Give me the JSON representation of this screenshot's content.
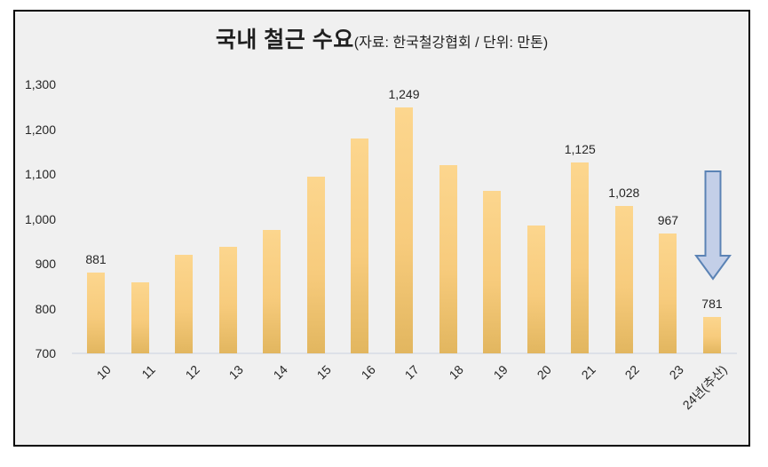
{
  "chart_data": {
    "type": "bar",
    "title": "국내 철근 수요",
    "subtitle": "(자료: 한국철강협회 / 단위: 만톤)",
    "categories": [
      "10",
      "11",
      "12",
      "13",
      "14",
      "15",
      "16",
      "17",
      "18",
      "19",
      "20",
      "21",
      "22",
      "23",
      "24년(추산)"
    ],
    "values": [
      881,
      858,
      920,
      938,
      975,
      1095,
      1180,
      1249,
      1120,
      1062,
      985,
      1125,
      1028,
      967,
      781
    ],
    "data_labels": [
      "881",
      null,
      null,
      null,
      null,
      null,
      null,
      "1,249",
      null,
      null,
      null,
      "1,125",
      "1,028",
      "967",
      "781"
    ],
    "ylim": [
      700,
      1300
    ],
    "ytick_step": 100,
    "ytick_labels": [
      "700",
      "800",
      "900",
      "1,000",
      "1,100",
      "1,200",
      "1,300"
    ],
    "grid": "off",
    "legend": "none",
    "annotation": {
      "shape": "down-arrow",
      "position": "above-last-bar"
    },
    "colors": {
      "background": "#f0f0f0",
      "frame_border": "#000000",
      "bar_top": "#fcd68e",
      "bar_mid": "#f7cb7c",
      "bar_bottom": "#e2b65f",
      "axis_line": "#dde1e8",
      "text": "#262626",
      "arrow_fill": "#c3cfe8",
      "arrow_stroke": "#5b83b5"
    }
  }
}
